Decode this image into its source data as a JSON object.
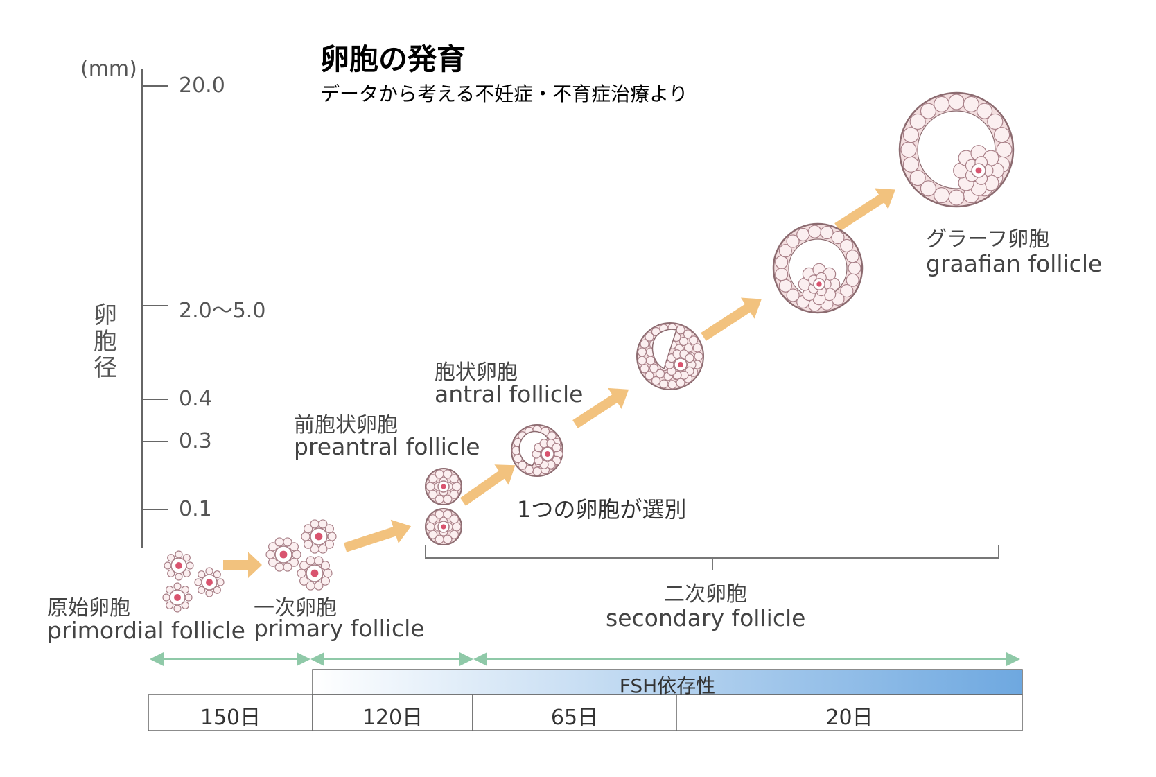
{
  "title": "卵胞の発育",
  "subtitle": "データから考える不妊症・不育症治療より",
  "y_axis": {
    "unit": "(mm)",
    "title": "卵胞径",
    "ticks": [
      "20.0",
      "2.0〜5.0",
      "0.4",
      "0.3",
      "0.1"
    ]
  },
  "stages": {
    "primordial": {
      "jp": "原始卵胞",
      "en": "primordial follicle"
    },
    "primary": {
      "jp": "一次卵胞",
      "en": "primary follicle"
    },
    "preantral": {
      "jp": "前胞状卵胞",
      "en": "preantral follicle"
    },
    "antral": {
      "jp": "胞状卵胞",
      "en": "antral follicle"
    },
    "graafian": {
      "jp": "グラーフ卵胞",
      "en": "graafian follicle"
    },
    "secondary": {
      "jp": "二次卵胞",
      "en": "secondary follicle"
    }
  },
  "selection_note": "1つの卵胞が選別",
  "fsh_label": "FSH依存性",
  "durations": [
    "150日",
    "120日",
    "65日",
    "20日"
  ],
  "colors": {
    "arrow": "#f2c27e",
    "timeline_arrow": "#8fc9a8",
    "cell_fill": "#fbeff0",
    "cell_stroke": "#a98088",
    "nucleus": "#d9546f",
    "fsh_gradient_start": "#ffffff",
    "fsh_gradient_end": "#6ea8e0"
  }
}
